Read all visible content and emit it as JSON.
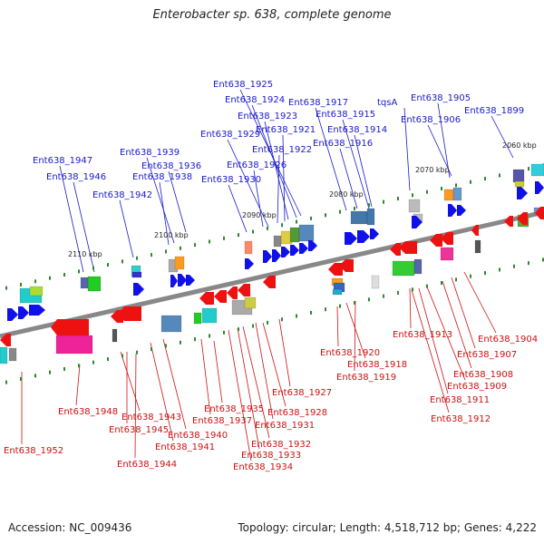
{
  "title": "Enterobacter sp. 638, complete genome",
  "footer": {
    "accession": "Accession: NC_009436",
    "summary": "Topology: circular; Length: 4,518,712 bp; Genes: 4,222"
  },
  "colors": {
    "backbone": "#888888",
    "top_label": "#1a1acc",
    "bottom_label": "#cc1111",
    "forward_arrow": "#1010e8",
    "reverse_arrow": "#ee1111",
    "tick": "#2a8a2a"
  },
  "scale_labels": [
    "2060 kbp",
    "2070 kbp",
    "2080 kbp",
    "2090 kbp",
    "2100 kbp",
    "2110 kbp"
  ],
  "top_gene_labels": [
    "Ent638_1925",
    "Ent638_1924",
    "Ent638_1923",
    "Ent638_1921",
    "Ent638_1922",
    "Ent638_1929",
    "Ent638_1926",
    "Ent638_1930",
    "Ent638_1917",
    "Ent638_1915",
    "Ent638_1914",
    "Ent638_1916",
    "tqsA",
    "Ent638_1905",
    "Ent638_1906",
    "Ent638_1899",
    "Ent638_1939",
    "Ent638_1936",
    "Ent638_1938",
    "Ent638_1947",
    "Ent638_1946",
    "Ent638_1942"
  ],
  "bottom_gene_labels": [
    "Ent638_1920",
    "Ent638_1918",
    "Ent638_1919",
    "Ent638_1913",
    "Ent638_1904",
    "Ent638_1907",
    "Ent638_1908",
    "Ent638_1909",
    "Ent638_1911",
    "Ent638_1912",
    "Ent638_1948",
    "Ent638_1943",
    "Ent638_1945",
    "Ent638_1944",
    "Ent638_1940",
    "Ent638_1941",
    "Ent638_1935",
    "Ent638_1937",
    "Ent638_1927",
    "Ent638_1928",
    "Ent638_1931",
    "Ent638_1932",
    "Ent638_1933",
    "Ent638_1934",
    "Ent638_1952"
  ]
}
